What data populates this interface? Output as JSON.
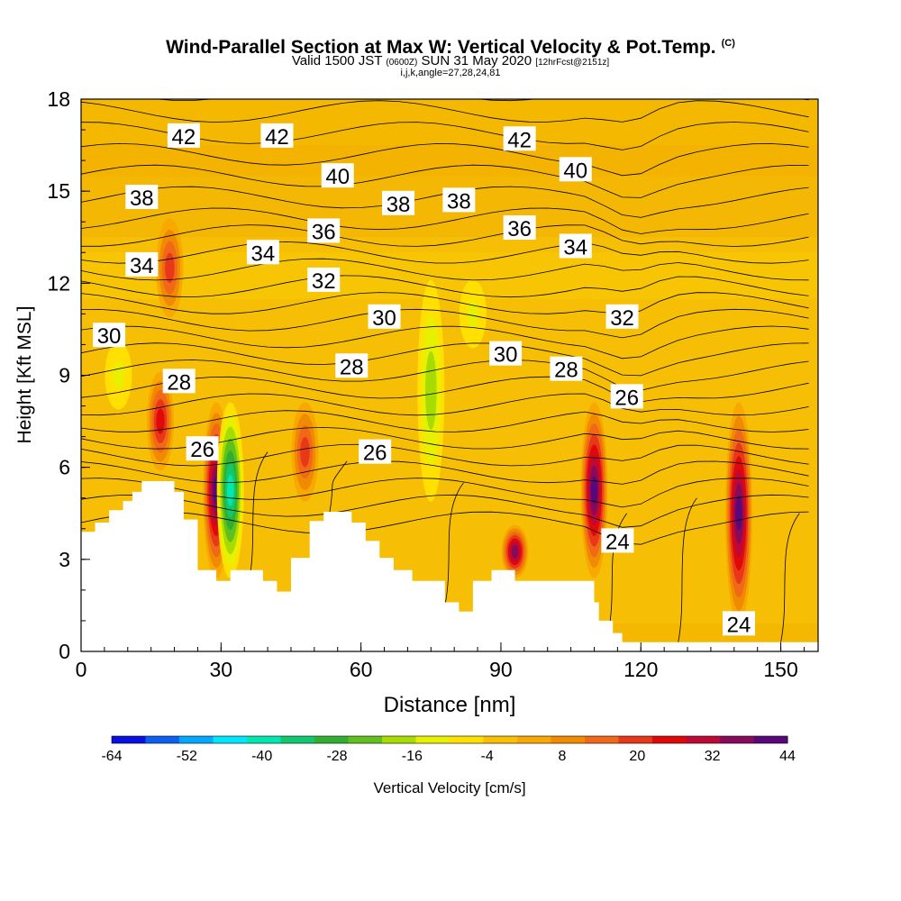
{
  "title": {
    "main": "Wind-Parallel Section at Max W: Vertical Velocity & Pot.Temp.",
    "copyright": "(C)",
    "valid_prefix": "Valid 1500 JST",
    "utc": "(0600Z)",
    "date": "SUN 31 May 2020",
    "forecast": "[12hrFcst@2151z]",
    "info": "i,j,k,angle=27,28,24,81"
  },
  "colors": {
    "background_field": "#f5b800",
    "terrain": "#ffffff",
    "contour": "#000000"
  },
  "chart_data": {
    "type": "heatmap",
    "xlabel": "Distance [nm]",
    "ylabel": "Height [Kft MSL]",
    "xlim": [
      0,
      158
    ],
    "ylim": [
      0,
      18
    ],
    "x_ticks": [
      0,
      30,
      60,
      90,
      120,
      150
    ],
    "x_tick_labels": [
      "0",
      "30",
      "60",
      "90",
      "120",
      "150"
    ],
    "y_ticks": [
      0,
      3,
      6,
      9,
      12,
      15,
      18
    ],
    "y_tick_labels": [
      "0",
      "3",
      "6",
      "9",
      "12",
      "15",
      "18"
    ],
    "colorbar": {
      "label": "Vertical Velocity [cm/s]",
      "min": -64,
      "max": 44,
      "tick_labels": [
        "-64",
        "-52",
        "-40",
        "-28",
        "-16",
        "-4",
        "8",
        "20",
        "32",
        "44"
      ],
      "colors": [
        "#0a10e0",
        "#0a60f0",
        "#00a8ff",
        "#00e6ff",
        "#00e8b0",
        "#10c870",
        "#30b030",
        "#60c020",
        "#a8dc00",
        "#e8f000",
        "#ffe000",
        "#f8c000",
        "#f8a800",
        "#f08a00",
        "#f06818",
        "#e83818",
        "#e00808",
        "#c00838",
        "#8a0a5a",
        "#58087a"
      ]
    },
    "terrain_height": [
      [
        0,
        3.9
      ],
      [
        3,
        4.2
      ],
      [
        6,
        4.6
      ],
      [
        9,
        4.9
      ],
      [
        11,
        5.2
      ],
      [
        13,
        5.55
      ],
      [
        19,
        5.55
      ],
      [
        20,
        5.2
      ],
      [
        22,
        4.3
      ],
      [
        25,
        2.65
      ],
      [
        29,
        2.3
      ],
      [
        32,
        2.65
      ],
      [
        39,
        2.3
      ],
      [
        42,
        1.95
      ],
      [
        45,
        3.05
      ],
      [
        49,
        4.25
      ],
      [
        52,
        4.55
      ],
      [
        58,
        4.2
      ],
      [
        61,
        3.6
      ],
      [
        64,
        3.05
      ],
      [
        67,
        2.65
      ],
      [
        71,
        2.3
      ],
      [
        78,
        1.6
      ],
      [
        81,
        1.3
      ],
      [
        84,
        2.3
      ],
      [
        88,
        2.65
      ],
      [
        93,
        2.3
      ],
      [
        105,
        2.3
      ],
      [
        110,
        1.6
      ],
      [
        111,
        1.0
      ],
      [
        114,
        0.6
      ],
      [
        116,
        0.3
      ],
      [
        158,
        0.3
      ]
    ],
    "vertical_velocity_features": [
      {
        "x": 29,
        "z0": 2.5,
        "z1": 8.0,
        "w": 40
      },
      {
        "x": 32,
        "z0": 2.5,
        "z1": 8.0,
        "w": -40
      },
      {
        "x": 17,
        "z0": 6.0,
        "z1": 9.0,
        "w": 24
      },
      {
        "x": 19,
        "z0": 11.0,
        "z1": 14.0,
        "w": 18
      },
      {
        "x": 48,
        "z0": 5.0,
        "z1": 8.0,
        "w": 20
      },
      {
        "x": 75,
        "z0": 5.0,
        "z1": 12.0,
        "w": -16
      },
      {
        "x": 84,
        "z0": 10.0,
        "z1": 12.0,
        "w": -14
      },
      {
        "x": 93,
        "z0": 2.5,
        "z1": 4.0,
        "w": 36
      },
      {
        "x": 110,
        "z0": 2.5,
        "z1": 8.0,
        "w": 44
      },
      {
        "x": 141,
        "z0": 1.0,
        "z1": 8.0,
        "w": 44
      },
      {
        "x": 8,
        "z0": 8.0,
        "z1": 10.0,
        "w": -14
      }
    ],
    "theta_contour_labels": [
      {
        "value": "42",
        "x": 22,
        "z": 16.8
      },
      {
        "value": "42",
        "x": 42,
        "z": 16.8
      },
      {
        "value": "42",
        "x": 94,
        "z": 16.7
      },
      {
        "value": "40",
        "x": 55,
        "z": 15.5
      },
      {
        "value": "40",
        "x": 106,
        "z": 15.7
      },
      {
        "value": "38",
        "x": 13,
        "z": 14.8
      },
      {
        "value": "38",
        "x": 68,
        "z": 14.6
      },
      {
        "value": "38",
        "x": 81,
        "z": 14.7
      },
      {
        "value": "36",
        "x": 52,
        "z": 13.7
      },
      {
        "value": "36",
        "x": 94,
        "z": 13.8
      },
      {
        "value": "34",
        "x": 13,
        "z": 12.6
      },
      {
        "value": "34",
        "x": 39,
        "z": 13.0
      },
      {
        "value": "34",
        "x": 106,
        "z": 13.2
      },
      {
        "value": "32",
        "x": 52,
        "z": 12.1
      },
      {
        "value": "32",
        "x": 116,
        "z": 10.9
      },
      {
        "value": "30",
        "x": 6,
        "z": 10.3
      },
      {
        "value": "30",
        "x": 65,
        "z": 10.9
      },
      {
        "value": "30",
        "x": 91,
        "z": 9.7
      },
      {
        "value": "28",
        "x": 21,
        "z": 8.8
      },
      {
        "value": "28",
        "x": 58,
        "z": 9.3
      },
      {
        "value": "28",
        "x": 104,
        "z": 9.2
      },
      {
        "value": "26",
        "x": 26,
        "z": 6.6
      },
      {
        "value": "26",
        "x": 63,
        "z": 6.5
      },
      {
        "value": "26",
        "x": 117,
        "z": 8.3
      },
      {
        "value": "24",
        "x": 115,
        "z": 3.6
      },
      {
        "value": "24",
        "x": 141,
        "z": 0.9
      }
    ]
  }
}
